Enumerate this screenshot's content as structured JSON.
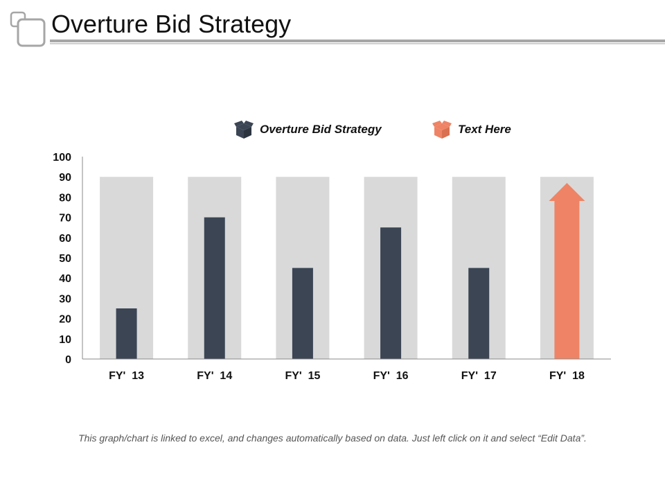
{
  "slide": {
    "title": "Overture Bid Strategy",
    "footnote": "This graph/chart is linked to excel, and changes automatically based on data. Just left click on it and select “Edit Data”."
  },
  "legend": {
    "items": [
      {
        "label": "Overture Bid Strategy",
        "icon": "box-icon",
        "color": "#3b4554"
      },
      {
        "label": "Text Here",
        "icon": "box-icon",
        "color": "#ee8465"
      }
    ]
  },
  "colors": {
    "series_bar": "#3b4554",
    "background_bar": "#d9d9d9",
    "highlight_arrow": "#ee8465",
    "axis": "#888888"
  },
  "chart_data": {
    "type": "bar",
    "categories": [
      "FY'  13",
      "FY'  14",
      "FY'  15",
      "FY'  16",
      "FY'  17",
      "FY'  18"
    ],
    "series": [
      {
        "name": "Overture Bid Strategy",
        "values": [
          25,
          70,
          45,
          65,
          45,
          null
        ]
      },
      {
        "name": "Text Here",
        "values": [
          null,
          null,
          null,
          null,
          null,
          87
        ]
      }
    ],
    "background_values": [
      90,
      90,
      90,
      90,
      90,
      90
    ],
    "yticks": [
      0,
      10,
      20,
      30,
      40,
      50,
      60,
      70,
      80,
      90,
      100
    ],
    "ylim": [
      0,
      100
    ],
    "grid": false,
    "legend_position": "top"
  }
}
